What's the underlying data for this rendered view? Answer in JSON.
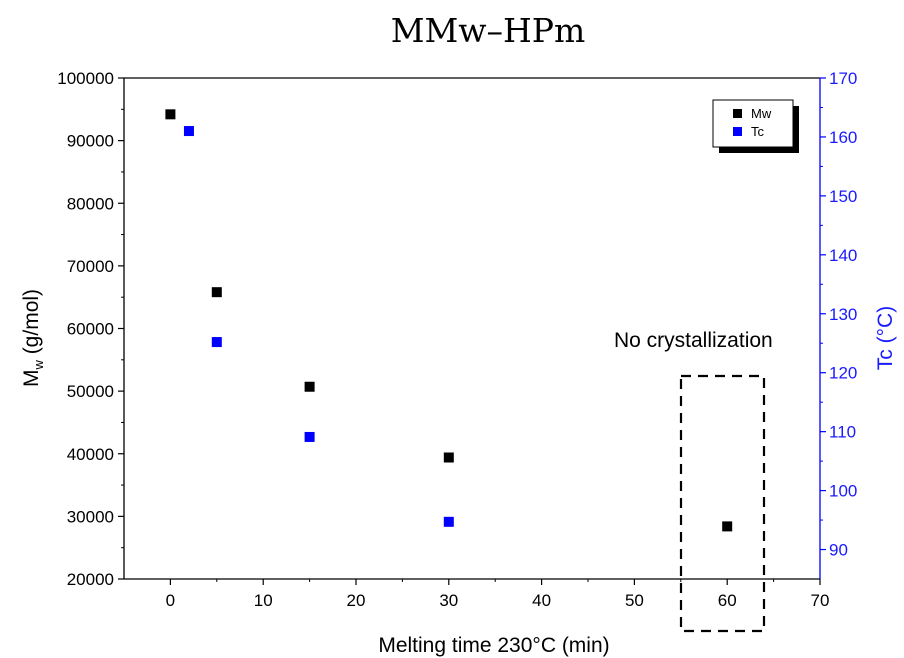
{
  "chart_data": {
    "type": "scatter",
    "title": "MMw–HPm",
    "xlabel": "Melting time 230°C (min)",
    "ylabel": {
      "main": "M",
      "sub": "w",
      "rest": " (g/mol)"
    },
    "y2label": "Tc (°C)",
    "xlim": [
      -5,
      70
    ],
    "ylim": [
      20000,
      100000
    ],
    "y2lim": [
      85,
      170
    ],
    "x_ticks": [
      0,
      10,
      20,
      30,
      40,
      50,
      60,
      70
    ],
    "y_ticks": [
      20000,
      30000,
      40000,
      50000,
      60000,
      70000,
      80000,
      90000,
      100000
    ],
    "y2_ticks": [
      90,
      100,
      110,
      120,
      130,
      140,
      150,
      160,
      170
    ],
    "grid": false,
    "legend_position": "top-right",
    "series": [
      {
        "name": "Mw",
        "axis": "left",
        "color": "#000000",
        "x": [
          0,
          5,
          15,
          30,
          60
        ],
        "y": [
          94200,
          65800,
          50700,
          39400,
          28400
        ]
      },
      {
        "name": "Tc",
        "axis": "right",
        "color": "#0000ff",
        "x": [
          2,
          5,
          15,
          30
        ],
        "y": [
          161,
          125.2,
          109.1,
          94.7
        ]
      }
    ],
    "annotations": [
      {
        "text": "No crystallization"
      }
    ]
  }
}
